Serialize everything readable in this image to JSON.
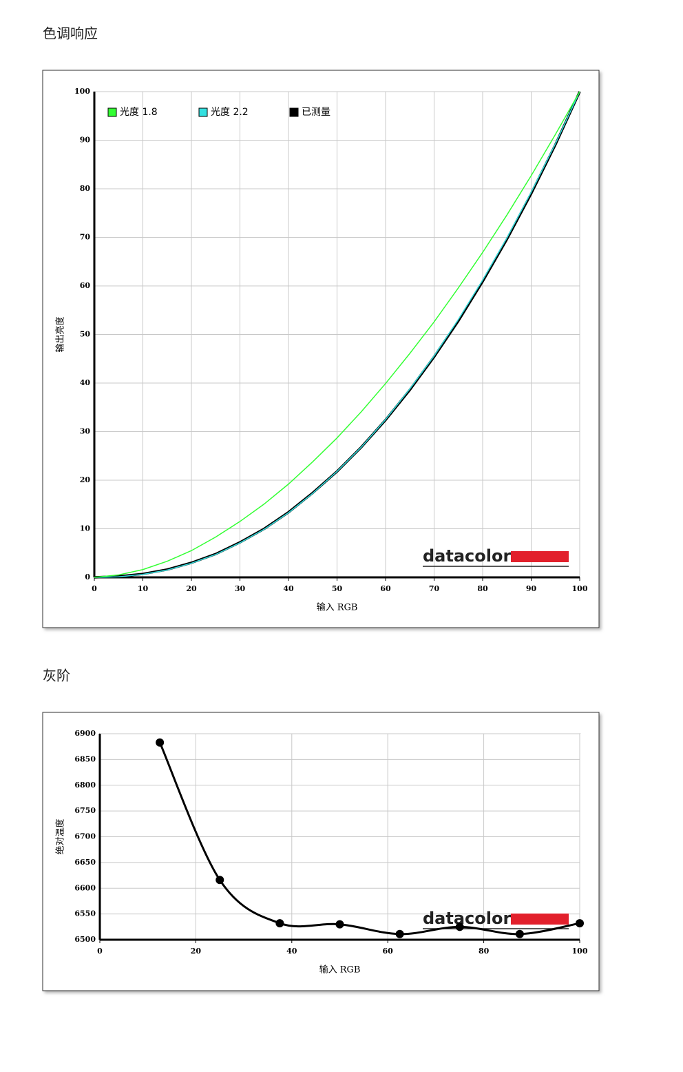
{
  "chart_data": [
    {
      "type": "line",
      "title": "色调响应",
      "xlabel": "输入 RGB",
      "ylabel": "输出亮度",
      "watermark": "datacolor",
      "x": [
        0,
        5,
        10,
        15,
        20,
        25,
        30,
        35,
        40,
        45,
        50,
        55,
        60,
        65,
        70,
        75,
        80,
        85,
        90,
        95,
        100
      ],
      "series": [
        {
          "name": "光度 1.8",
          "color": "#33ff33",
          "values": [
            0,
            0.5,
            1.6,
            3.3,
            5.5,
            8.3,
            11.5,
            15.1,
            19.2,
            23.8,
            28.7,
            34.1,
            39.9,
            46.1,
            52.6,
            59.6,
            66.9,
            74.6,
            82.7,
            91.2,
            100
          ]
        },
        {
          "name": "光度 2.2",
          "color": "#33e0e0",
          "values": [
            0,
            0.1,
            0.6,
            1.5,
            2.9,
            4.7,
            7.1,
            9.9,
            13.3,
            17.3,
            21.8,
            26.8,
            32.5,
            38.8,
            45.6,
            53.1,
            61.2,
            69.9,
            79.3,
            89.3,
            100
          ]
        },
        {
          "name": "已测量",
          "color": "#000000",
          "values": [
            0,
            0.2,
            0.7,
            1.6,
            3.0,
            4.8,
            7.2,
            10.0,
            13.4,
            17.4,
            21.8,
            26.8,
            32.4,
            38.6,
            45.4,
            52.8,
            60.9,
            69.6,
            79.0,
            89.1,
            100
          ]
        }
      ],
      "xlim": [
        0,
        100
      ],
      "xticks": [
        0,
        10,
        20,
        30,
        40,
        50,
        60,
        70,
        80,
        90,
        100
      ],
      "ylim": [
        0,
        100
      ],
      "yticks": [
        0,
        10,
        20,
        30,
        40,
        50,
        60,
        70,
        80,
        90,
        100
      ],
      "grid": true,
      "legend": "top-left"
    },
    {
      "type": "line",
      "title": "灰阶",
      "xlabel": "输入 RGB",
      "ylabel": "绝对温度",
      "watermark": "datacolor",
      "x": [
        12.5,
        25,
        37.5,
        50,
        62.5,
        75,
        87.5,
        100
      ],
      "values": [
        6883,
        6616,
        6532,
        6530,
        6511,
        6525,
        6511,
        6532
      ],
      "color": "#000000",
      "markers": true,
      "smooth": true,
      "xlim": [
        0,
        100
      ],
      "xticks": [
        0,
        20,
        40,
        60,
        80,
        100
      ],
      "ylim": [
        6500,
        6900
      ],
      "yticks": [
        6500,
        6550,
        6600,
        6650,
        6700,
        6750,
        6800,
        6850,
        6900
      ],
      "grid": true
    }
  ]
}
